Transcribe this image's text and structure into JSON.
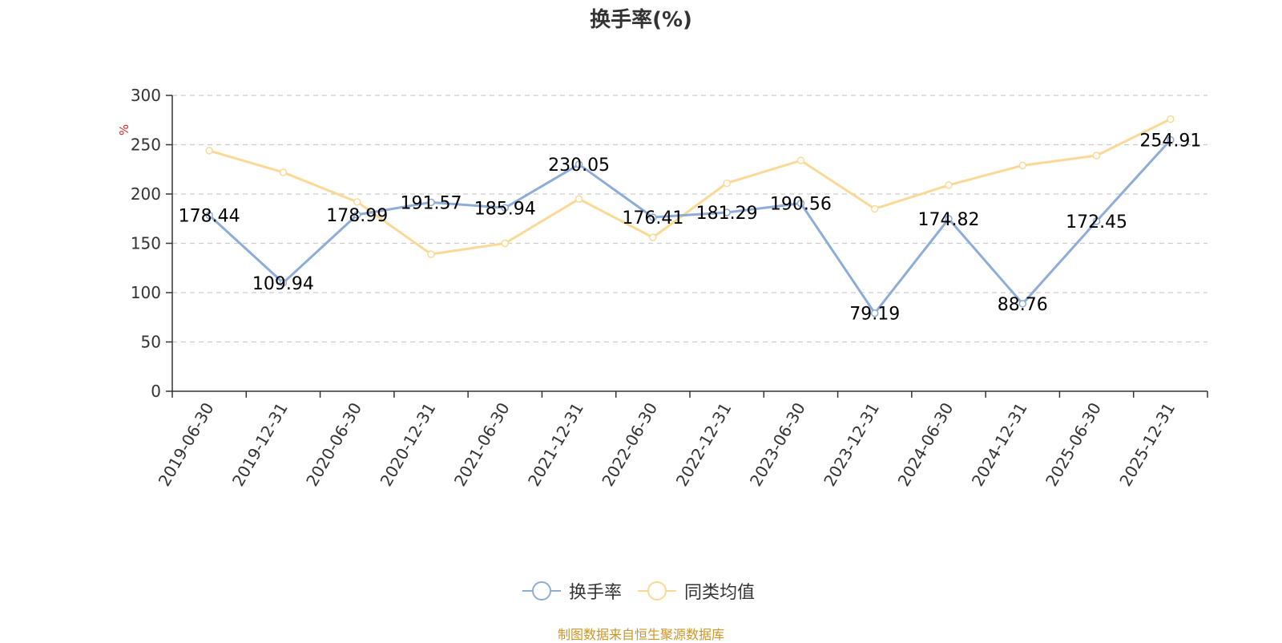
{
  "title": "换手率(%)",
  "source": "制图数据来自恒生聚源数据库",
  "colors": {
    "series1": "#8eacd8",
    "series2": "#fad996",
    "axis": "#333333",
    "grid": "#cccccc",
    "unit": "#e0261d"
  },
  "chart_data": {
    "type": "line",
    "title": "换手率(%)",
    "ylabel": "%",
    "xlabel": "",
    "ylim": [
      0,
      300
    ],
    "yticks": [
      0,
      50,
      100,
      150,
      200,
      250,
      300
    ],
    "grid": true,
    "legend_position": "bottom-center",
    "categories": [
      "2019-06-30",
      "2019-12-31",
      "2020-06-30",
      "2020-12-31",
      "2021-06-30",
      "2021-12-31",
      "2022-06-30",
      "2022-12-31",
      "2023-06-30",
      "2023-12-31",
      "2024-06-30",
      "2024-12-31",
      "2025-06-30",
      "2025-12-31"
    ],
    "series": [
      {
        "name": "换手率",
        "color": "#8eacd8",
        "labels": true,
        "values": [
          178.44,
          109.94,
          178.99,
          191.57,
          185.94,
          230.05,
          176.41,
          181.29,
          190.56,
          79.19,
          174.82,
          88.76,
          172.45,
          254.91
        ]
      },
      {
        "name": "同类均值",
        "color": "#fad996",
        "labels": false,
        "values": [
          244,
          222,
          192,
          139,
          150,
          195,
          156,
          211,
          234,
          185,
          209,
          229,
          239,
          276
        ]
      }
    ]
  }
}
